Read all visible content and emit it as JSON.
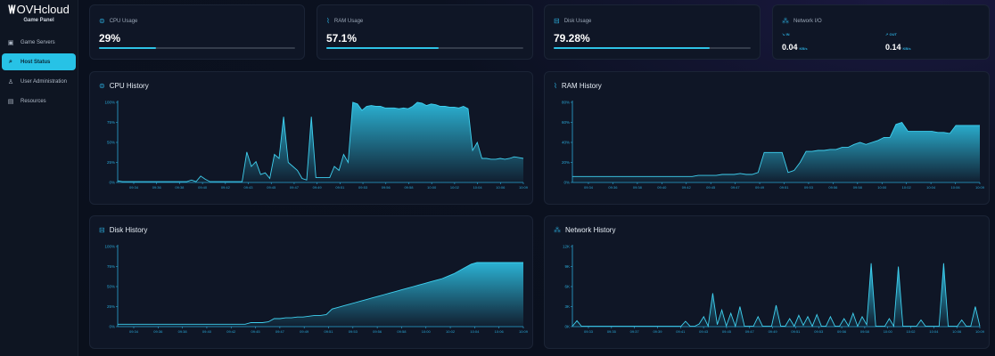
{
  "brand": {
    "name": "OVHcloud",
    "subtitle": "Game Panel"
  },
  "sidebar": {
    "items": [
      {
        "label": "Game Servers",
        "icon": "server-icon",
        "active": false
      },
      {
        "label": "Host Status",
        "icon": "monitor-search-icon",
        "active": true
      },
      {
        "label": "User Administration",
        "icon": "user-icon",
        "active": false
      },
      {
        "label": "Resources",
        "icon": "briefcase-icon",
        "active": false
      }
    ]
  },
  "stats": {
    "cpu": {
      "label": "CPU Usage",
      "value": "29%",
      "percent": 29
    },
    "ram": {
      "label": "RAM Usage",
      "value": "57.1%",
      "percent": 57.1
    },
    "disk": {
      "label": "Disk Usage",
      "value": "79.28%",
      "percent": 79.28
    },
    "network": {
      "label": "Network I/O",
      "in_label": "IN",
      "in_value": "0.04",
      "in_unit": "KB/s",
      "out_label": "OUT",
      "out_value": "0.14",
      "out_unit": "KB/s"
    }
  },
  "accent": "#2ec3e6",
  "chart_data": [
    {
      "id": "cpu",
      "type": "area",
      "title": "CPU History",
      "ylim": [
        0,
        100
      ],
      "yticks": [
        "0%",
        "25%",
        "50%",
        "75%",
        "100%"
      ],
      "xticks": [
        "09:34",
        "09:36",
        "09:38",
        "09:40",
        "09:42",
        "09:43",
        "09:45",
        "09:47",
        "09:49",
        "09:51",
        "09:53",
        "09:56",
        "09:58",
        "10:00",
        "10:02",
        "10:04",
        "10:06",
        "10:09"
      ],
      "values": [
        2,
        1,
        1,
        1,
        1,
        1,
        1,
        1,
        1,
        1,
        1,
        1,
        1,
        1,
        1,
        1,
        3,
        1,
        8,
        4,
        1,
        1,
        1,
        1,
        1,
        1,
        1,
        1,
        38,
        20,
        26,
        10,
        12,
        5,
        35,
        30,
        82,
        25,
        20,
        15,
        5,
        3,
        82,
        6,
        6,
        6,
        6,
        20,
        15,
        35,
        25,
        100,
        98,
        90,
        95,
        96,
        95,
        95,
        93,
        93,
        93,
        92,
        93,
        92,
        95,
        100,
        99,
        96,
        98,
        97,
        95,
        95,
        94,
        94,
        93,
        95,
        92,
        40,
        50,
        30,
        30,
        29,
        29,
        30,
        29,
        30,
        32,
        31,
        30
      ]
    },
    {
      "id": "ram",
      "type": "area",
      "title": "RAM History",
      "ylim": [
        0,
        80
      ],
      "yticks": [
        "0%",
        "20%",
        "40%",
        "60%",
        "80%"
      ],
      "xticks": [
        "09:34",
        "09:36",
        "09:38",
        "09:40",
        "09:42",
        "09:45",
        "09:47",
        "09:49",
        "09:51",
        "09:53",
        "09:56",
        "09:58",
        "10:00",
        "10:02",
        "10:04",
        "10:06",
        "10:09"
      ],
      "values": [
        6,
        6,
        6,
        6,
        6,
        6,
        6,
        6,
        6,
        6,
        6,
        6,
        6,
        6,
        6,
        6,
        6,
        6,
        6,
        6,
        6,
        7,
        7,
        7,
        7,
        8,
        8,
        8,
        9,
        8,
        8,
        10,
        30,
        30,
        30,
        30,
        10,
        12,
        20,
        31,
        31,
        32,
        32,
        33,
        33,
        35,
        35,
        38,
        40,
        38,
        40,
        42,
        45,
        45,
        58,
        60,
        51,
        51,
        51,
        51,
        51,
        50,
        50,
        49,
        57,
        57,
        57,
        57,
        57
      ]
    },
    {
      "id": "disk",
      "type": "area",
      "title": "Disk History",
      "ylim": [
        0,
        100
      ],
      "yticks": [
        "0%",
        "25%",
        "50%",
        "75%",
        "100%"
      ],
      "xticks": [
        "09:34",
        "09:36",
        "09:38",
        "09:40",
        "09:42",
        "09:45",
        "09:47",
        "09:49",
        "09:51",
        "09:53",
        "09:56",
        "09:58",
        "10:00",
        "10:02",
        "10:04",
        "10:06",
        "10:09"
      ],
      "values": [
        3,
        3,
        3,
        3,
        3,
        3,
        3,
        3,
        3,
        3,
        3,
        3,
        3,
        3,
        3,
        3,
        3,
        3,
        3,
        3,
        3,
        3,
        3,
        5,
        5,
        5,
        6,
        10,
        10,
        11,
        11,
        12,
        12,
        13,
        14,
        14,
        15,
        22,
        24,
        26,
        28,
        30,
        32,
        34,
        36,
        38,
        40,
        42,
        44,
        46,
        48,
        50,
        52,
        54,
        56,
        58,
        60,
        63,
        66,
        70,
        74,
        78,
        80,
        80,
        80,
        80,
        80,
        80,
        80,
        80,
        80
      ]
    },
    {
      "id": "network",
      "type": "area",
      "title": "Network History",
      "ylim": [
        0,
        12000
      ],
      "yticks": [
        "0K",
        "3K",
        "6K",
        "9K",
        "12K"
      ],
      "xticks": [
        "09:33",
        "09:35",
        "09:37",
        "09:39",
        "09:41",
        "09:43",
        "09:45",
        "09:47",
        "09:49",
        "09:51",
        "09:53",
        "09:56",
        "09:58",
        "10:00",
        "10:02",
        "10:04",
        "10:06",
        "10:09"
      ],
      "values": [
        50,
        900,
        50,
        50,
        50,
        50,
        50,
        50,
        50,
        50,
        50,
        50,
        50,
        50,
        50,
        50,
        50,
        50,
        50,
        50,
        50,
        50,
        50,
        50,
        50,
        800,
        50,
        50,
        400,
        1500,
        50,
        5000,
        300,
        2500,
        100,
        2000,
        50,
        3000,
        50,
        50,
        50,
        1500,
        50,
        50,
        50,
        3200,
        100,
        50,
        1200,
        50,
        1700,
        200,
        1500,
        50,
        1800,
        50,
        50,
        1500,
        50,
        50,
        1200,
        100,
        2000,
        50,
        1500,
        300,
        9500,
        50,
        50,
        50,
        1200,
        50,
        9000,
        50,
        50,
        50,
        50,
        1000,
        50,
        50,
        50,
        50,
        9500,
        50,
        50,
        50,
        1000,
        50,
        50,
        3000,
        50
      ]
    }
  ]
}
